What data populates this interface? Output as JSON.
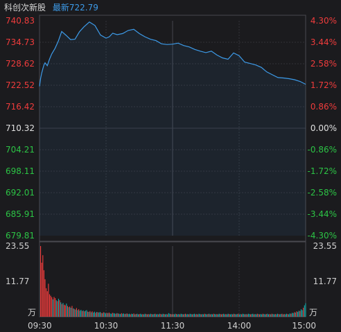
{
  "header": {
    "name": "科创次新股",
    "latest_label": "最新",
    "latest_value": "722.79"
  },
  "colors": {
    "up": "#f03c3c",
    "down": "#2cc445",
    "flat": "#e0e0e0",
    "line": "#3d9be9",
    "vol_up": "#f03c3c",
    "vol_down": "#18a8a8",
    "grid": "#3a3a40",
    "border": "#4a4a50"
  },
  "chart_data": [
    {
      "type": "line",
      "title": "",
      "x_ticks": [
        "09:30",
        "10:30",
        "11:30",
        "14:00",
        "15:00"
      ],
      "base": 710.32,
      "price_ticks": [
        "740.83",
        "734.73",
        "728.62",
        "722.52",
        "716.42",
        "710.32",
        "704.21",
        "698.11",
        "692.01",
        "685.91",
        "679.81"
      ],
      "pct_ticks": [
        "4.30%",
        "3.44%",
        "2.58%",
        "1.72%",
        "0.86%",
        "0.00%",
        "-0.86%",
        "-1.72%",
        "-2.58%",
        "-3.44%",
        "-4.30%"
      ],
      "ylim": [
        679.81,
        740.83
      ],
      "x": [
        0,
        1,
        2,
        3,
        4,
        5,
        7,
        9,
        11,
        14,
        17,
        20,
        24,
        28,
        32,
        36,
        40,
        45,
        50,
        55,
        60,
        63,
        66,
        70,
        75,
        80,
        85,
        90,
        95,
        100,
        105,
        110,
        115,
        120,
        125,
        130,
        135,
        140,
        145,
        150,
        155,
        160,
        165,
        170,
        175,
        180,
        185,
        190,
        195,
        200,
        205,
        210,
        215,
        220,
        225,
        230,
        235,
        240
      ],
      "y": [
        722.2,
        724.5,
        726.0,
        727.2,
        728.3,
        728.9,
        728.1,
        729.9,
        731.4,
        733.0,
        735.1,
        737.8,
        736.7,
        735.5,
        735.6,
        737.7,
        739.1,
        740.5,
        739.5,
        736.8,
        735.9,
        736.3,
        737.3,
        736.9,
        737.2,
        738.1,
        738.4,
        737.2,
        736.3,
        735.6,
        735.2,
        734.3,
        734.1,
        734.2,
        734.5,
        733.8,
        733.4,
        732.7,
        732.2,
        731.8,
        732.2,
        731.1,
        730.3,
        729.9,
        731.7,
        730.9,
        729.1,
        728.7,
        728.3,
        727.6,
        726.3,
        725.5,
        724.7,
        724.6,
        724.4,
        724.1,
        723.6,
        722.79
      ]
    },
    {
      "type": "bar",
      "title": "",
      "unit_label": "万",
      "y_ticks": [
        "23.55",
        "11.77"
      ],
      "ylim": [
        0,
        23.55
      ],
      "values": [
        23.55,
        18.0,
        20.5,
        15.5,
        12.5,
        9.5,
        8.5,
        11.0,
        7.5,
        7.0,
        6.5,
        5.8,
        6.6,
        6.2,
        5.5,
        5.2,
        6.0,
        5.5,
        4.8,
        4.2,
        4.6,
        4.0,
        3.8,
        4.4,
        3.6,
        3.2,
        3.4,
        3.0,
        3.6,
        2.8,
        2.6,
        2.4,
        2.9,
        2.2,
        2.5,
        2.0,
        2.3,
        1.9,
        2.1,
        1.8,
        2.0,
        2.2,
        1.7,
        1.6,
        1.9,
        1.5,
        1.8,
        1.4,
        1.7,
        1.3,
        1.6,
        1.5,
        1.4,
        1.6,
        1.3,
        1.2,
        1.5,
        1.4,
        1.1,
        1.3,
        1.2,
        1.4,
        1.1,
        1.0,
        1.3,
        1.2,
        1.1,
        1.0,
        1.2,
        1.1,
        1.0,
        0.9,
        1.2,
        1.0,
        1.1,
        0.9,
        1.0,
        1.1,
        0.9,
        1.0,
        0.8,
        1.0,
        0.9,
        1.1,
        0.8,
        0.9,
        1.0,
        0.8,
        0.9,
        1.0,
        0.8,
        0.9,
        0.8,
        1.0,
        0.9,
        0.8,
        0.9,
        0.8,
        1.0,
        0.9,
        0.8,
        0.9,
        1.0,
        0.8,
        0.9,
        0.8,
        1.0,
        0.9,
        0.8,
        1.0,
        0.9,
        0.8,
        0.9,
        0.8,
        1.2,
        1.0,
        0.9,
        0.8,
        0.9,
        0.8,
        1.0,
        0.9,
        0.8,
        0.9,
        0.8,
        1.0,
        0.9,
        0.8,
        0.9,
        1.0,
        0.8,
        0.9,
        0.8,
        1.0,
        0.9,
        0.8,
        0.9,
        1.0,
        0.8,
        0.9,
        0.8,
        1.0,
        0.9,
        0.8,
        0.9,
        0.8,
        1.0,
        0.9,
        0.8,
        0.9,
        1.0,
        0.8,
        0.9,
        0.8,
        1.0,
        0.9,
        0.8,
        0.9,
        0.8,
        1.0,
        0.9,
        0.8,
        0.9,
        1.0,
        0.8,
        0.9,
        0.8,
        1.0,
        0.9,
        0.8,
        0.9,
        0.8,
        1.0,
        0.9,
        0.8,
        0.9,
        1.0,
        0.8,
        0.9,
        0.8,
        1.0,
        0.9,
        0.8,
        0.9,
        0.8,
        1.0,
        0.9,
        0.8,
        0.9,
        1.0,
        0.8,
        0.9,
        0.8,
        1.0,
        0.9,
        0.8,
        0.9,
        0.8,
        1.0,
        0.9,
        0.8,
        0.9,
        1.0,
        0.8,
        0.9,
        0.8,
        1.0,
        0.9,
        0.8,
        0.9,
        0.8,
        1.0,
        0.9,
        0.8,
        0.9,
        1.0,
        0.8,
        0.9,
        0.8,
        1.0,
        0.9,
        0.8,
        1.1,
        1.0,
        1.3,
        1.2,
        1.5,
        1.4,
        1.8,
        1.6,
        2.0,
        1.9,
        2.5,
        2.2,
        3.0,
        3.8,
        4.5
      ],
      "up_flags": [
        1,
        1,
        1,
        1,
        1,
        1,
        1,
        1,
        1,
        1,
        1,
        0,
        1,
        1,
        0,
        1,
        0,
        1,
        0,
        1,
        0,
        1,
        1,
        0,
        1,
        0,
        1,
        0,
        1,
        0,
        1,
        0,
        1,
        0,
        1,
        0,
        0,
        1,
        0,
        1,
        0,
        0,
        1,
        0,
        1,
        0,
        1,
        0,
        0,
        1,
        0,
        1,
        0,
        0,
        1,
        0,
        1,
        0,
        0,
        1,
        0,
        1,
        0,
        0,
        1,
        0,
        0,
        1,
        0,
        1,
        0,
        0,
        1,
        0,
        0,
        1,
        0,
        1,
        0,
        0,
        1,
        0,
        0,
        1,
        0,
        1,
        0,
        0,
        1,
        0,
        0,
        1,
        0,
        0,
        1,
        0,
        1,
        0,
        0,
        1,
        0,
        0,
        1,
        0,
        0,
        1,
        0,
        1,
        0,
        0,
        1,
        0,
        0,
        1,
        0,
        0,
        1,
        0,
        1,
        0,
        0,
        1,
        0,
        0,
        1,
        0,
        0,
        1,
        0,
        1,
        0,
        0,
        1,
        0,
        0,
        1,
        0,
        0,
        1,
        0,
        1,
        0,
        0,
        1,
        0,
        0,
        1,
        0,
        0,
        1,
        0,
        1,
        0,
        0,
        1,
        0,
        0,
        1,
        0,
        0,
        1,
        0,
        1,
        0,
        0,
        1,
        0,
        0,
        1,
        0,
        0,
        1,
        0,
        1,
        0,
        0,
        1,
        0,
        0,
        1,
        0,
        0,
        1,
        0,
        1,
        0,
        0,
        1,
        0,
        0,
        1,
        0,
        0,
        1,
        0,
        1,
        0,
        0,
        1,
        0,
        0,
        1,
        0,
        0,
        1,
        0,
        1,
        0,
        0,
        1,
        0,
        0,
        1,
        0,
        0,
        1,
        0,
        1,
        0,
        0,
        1,
        0,
        0,
        1,
        0,
        0,
        1,
        0,
        1,
        0,
        0,
        1,
        0,
        0,
        1,
        0,
        0,
        0,
        1,
        0,
        0,
        0,
        1,
        0,
        0,
        0,
        0,
        0,
        0,
        0,
        0
      ]
    }
  ]
}
